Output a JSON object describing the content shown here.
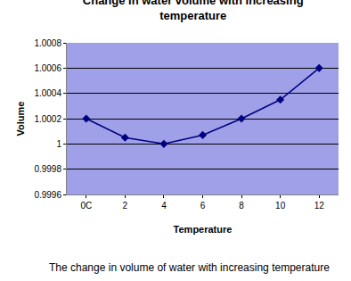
{
  "chart_data": {
    "type": "line",
    "title": "Change in water volume with increasing temperature",
    "x_label": "Temperature",
    "y_label": "Volume",
    "categories": [
      "0C",
      "2",
      "4",
      "6",
      "8",
      "10",
      "12"
    ],
    "values": [
      1.0002,
      1.00005,
      1.0,
      1.00007,
      1.0002,
      1.00035,
      1.0006
    ],
    "color": "#000080",
    "marker": "diamond",
    "ylim": [
      0.9996,
      1.0008
    ],
    "yticks": [
      0.9996,
      0.9998,
      1,
      1.0002,
      1.0004,
      1.0006,
      1.0008
    ],
    "grid": true,
    "annotations": [
      "The change in volume of water with increasing temperature"
    ]
  }
}
